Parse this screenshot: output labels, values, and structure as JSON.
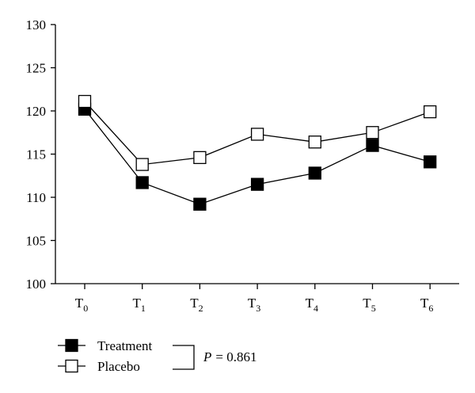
{
  "chart_data": {
    "type": "line",
    "title": "",
    "xlabel": "",
    "ylabel": "",
    "categories": [
      {
        "base": "T",
        "sub": "0"
      },
      {
        "base": "T",
        "sub": "1"
      },
      {
        "base": "T",
        "sub": "2"
      },
      {
        "base": "T",
        "sub": "3"
      },
      {
        "base": "T",
        "sub": "4"
      },
      {
        "base": "T",
        "sub": "5"
      },
      {
        "base": "T",
        "sub": "6"
      }
    ],
    "ylim": [
      100,
      130
    ],
    "yticks": [
      100,
      105,
      110,
      115,
      120,
      125,
      130
    ],
    "grid": false,
    "legend_position": "bottom-left",
    "series": [
      {
        "name": "Treatment",
        "marker": "filled-square",
        "values": [
          120.2,
          111.7,
          109.2,
          111.5,
          112.8,
          116.0,
          114.1
        ]
      },
      {
        "name": "Placebo",
        "marker": "open-square",
        "values": [
          121.1,
          113.8,
          114.6,
          117.3,
          116.4,
          117.5,
          119.9
        ]
      }
    ],
    "annotation": {
      "p_symbol": "P",
      "p_value": "= 0.861"
    }
  }
}
